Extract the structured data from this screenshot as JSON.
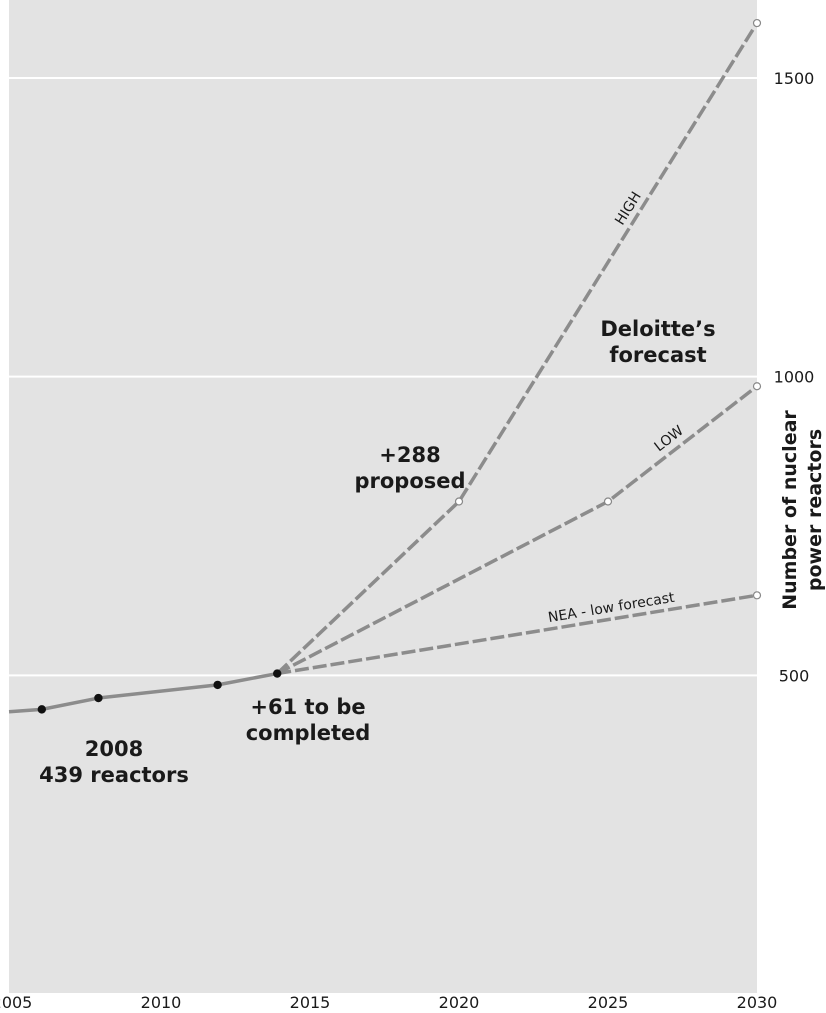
{
  "chart_data": {
    "type": "line",
    "title": "",
    "xlabel": "",
    "ylabel_lines": [
      "Number of nuclear",
      "power reactors"
    ],
    "xlim": [
      2005,
      2030
    ],
    "ylim": [
      0,
      1500
    ],
    "x_ticks": [
      "2005",
      "2010",
      "2015",
      "2020",
      "2025",
      "2030"
    ],
    "y_ticks": [
      "500",
      "1000",
      "1500"
    ],
    "grid": "horizontal",
    "background": "#e3e3e3",
    "line_color": "#8c8c8c",
    "historical": {
      "x": [
        2004.9,
        2006.0,
        2007.9,
        2011.9,
        2013.9
      ],
      "y": [
        439,
        443,
        462,
        484,
        503
      ],
      "markers": [
        2006.0,
        2007.9,
        2011.9,
        2013.9
      ]
    },
    "series": [
      {
        "name": "HIGH",
        "x": [
          2013.9,
          2020.0,
          2030.0
        ],
        "y": [
          503,
          791,
          1592
        ]
      },
      {
        "name": "LOW",
        "x": [
          2013.9,
          2025.0,
          2030.0
        ],
        "y": [
          503,
          791,
          984
        ]
      },
      {
        "name": "NEA - low forecast",
        "x": [
          2013.9,
          2030.0
        ],
        "y": [
          503,
          634
        ]
      }
    ],
    "annotations": {
      "year_2008": "2008",
      "reactors_439": "439 reactors",
      "plus_61": "+61 to be",
      "completed": "completed",
      "plus_288": "+288",
      "proposed": "proposed",
      "deloitte_1": "Deloitte’s",
      "deloitte_2": "forecast"
    }
  }
}
